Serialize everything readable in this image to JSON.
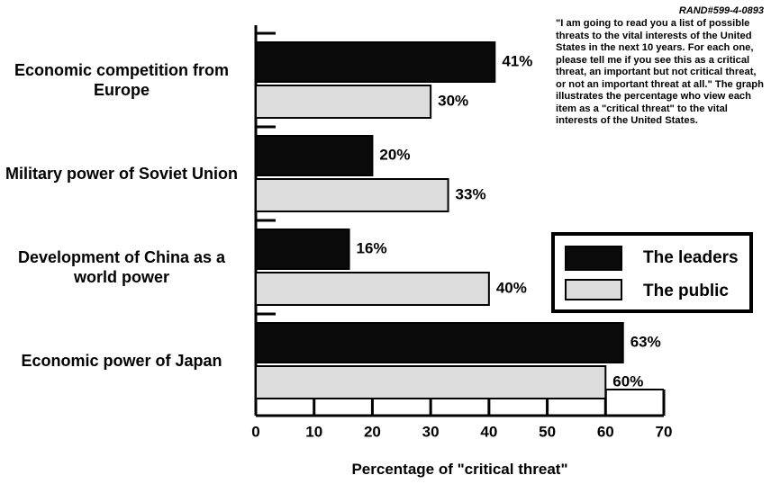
{
  "chart_data": {
    "type": "barh",
    "source": "RAND#599-4-0893",
    "note": "\"I am going to read you a list of possible threats to the vital interests of the United States in the next 10 years.  For each one, please tell me if you see this as a critical threat, an important but not critical threat, or not an important threat at all.\"  The graph illustrates the percentage who view each item as a \"critical threat\" to the vital interests of the United States.",
    "x_label": "Percentage of \"critical threat\"",
    "categories": [
      "Economic competition from Europe",
      "Military power of Soviet Union",
      "Development of China as a world power",
      "Economic power of Japan"
    ],
    "series": [
      {
        "name": "The leaders",
        "color": "#0a0a0a",
        "values": [
          41,
          20,
          16,
          63
        ],
        "value_labels": [
          "41%",
          "20%",
          "16%",
          "63%"
        ]
      },
      {
        "name": "The public",
        "color": "#dcdcdc",
        "values": [
          30,
          33,
          40,
          60
        ],
        "value_labels": [
          "30%",
          "33%",
          "40%",
          "60%"
        ]
      }
    ],
    "xlim": [
      0,
      70
    ],
    "xticks": [
      0,
      10,
      20,
      30,
      40,
      50,
      60,
      70
    ],
    "legend": "right"
  }
}
